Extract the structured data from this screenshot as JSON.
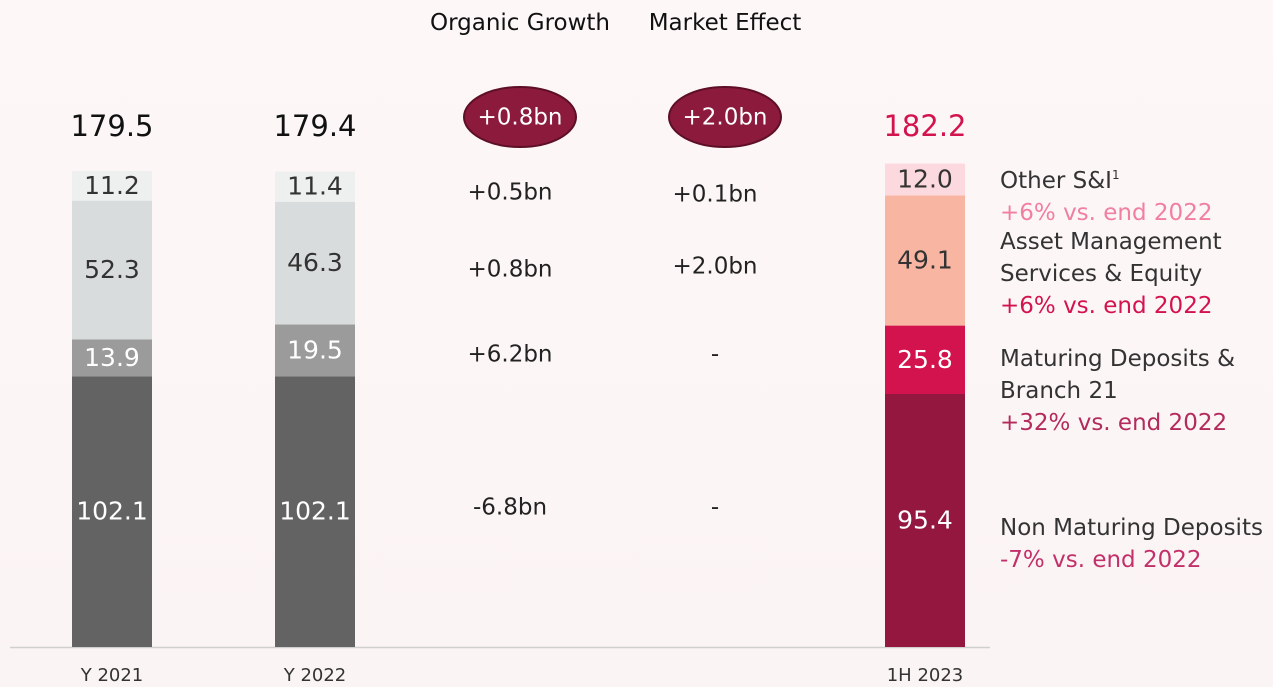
{
  "chart_data": {
    "type": "stacked_bar",
    "categories": [
      "Y 2021",
      "Y 2022",
      "1H 2023"
    ],
    "totals": [
      179.5,
      179.4,
      182.2
    ],
    "total_colors": [
      "#111111",
      "#111111",
      "#d3134e"
    ],
    "series": [
      {
        "name": "Non Maturing Deposits",
        "change": "-7% vs. end 2022",
        "change_color": "#c2306a",
        "colors": [
          "#636363",
          "#636363",
          "#93173f"
        ],
        "label_colors": [
          "#ffffff",
          "#ffffff",
          "#ffffff"
        ],
        "values": [
          102.1,
          102.1,
          95.4
        ]
      },
      {
        "name": "Maturing Deposits & Branch 21",
        "change": "+32% vs. end 2022",
        "change_color": "#b32a5c",
        "colors": [
          "#9b9b9b",
          "#9b9b9b",
          "#d3134e"
        ],
        "label_colors": [
          "#ffffff",
          "#ffffff",
          "#ffffff"
        ],
        "values": [
          13.9,
          19.5,
          25.8
        ]
      },
      {
        "name": "Asset Management Services & Equity",
        "change": "+6% vs. end 2022",
        "change_color": "#d3134e",
        "colors": [
          "#d9dcdc",
          "#d9dcdc",
          "#f8b6a2"
        ],
        "label_colors": [
          "#333333",
          "#333333",
          "#333333"
        ],
        "values": [
          52.3,
          46.3,
          49.1
        ]
      },
      {
        "name": "Other S&I",
        "note": "1",
        "change": "+6% vs. end 2022",
        "change_color": "#f07fa0",
        "colors": [
          "#eef0ef",
          "#eef0ef",
          "#fcd9df"
        ],
        "label_colors": [
          "#333333",
          "#333333",
          "#333333"
        ],
        "values": [
          11.2,
          11.4,
          12.0
        ],
        "value_labels": [
          "11.2",
          "11.4",
          "12.0"
        ]
      }
    ],
    "annotations": [
      {
        "title": "Organic Growth",
        "total": "+0.8bn",
        "values": [
          "-6.8bn",
          "+6.2bn",
          "+0.8bn",
          "+0.5bn"
        ]
      },
      {
        "title": "Market Effect",
        "total": "+2.0bn",
        "values": [
          "-",
          "-",
          "+2.0bn",
          "+0.1bn"
        ]
      }
    ]
  }
}
